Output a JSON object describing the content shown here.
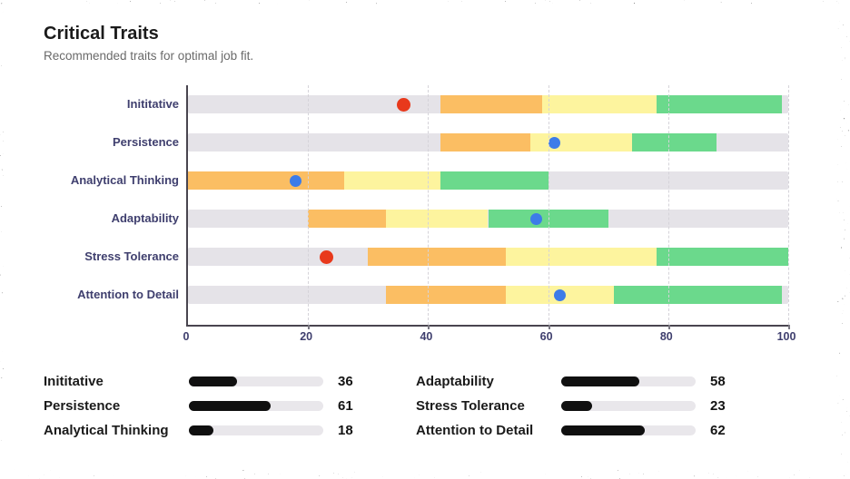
{
  "card": {
    "title": "Critical Traits",
    "subtitle": "Recommended traits for optimal job fit."
  },
  "chart_data": {
    "type": "bar",
    "title": "Critical Traits",
    "orientation": "horizontal",
    "xlim": [
      0,
      100
    ],
    "x_ticks": [
      0,
      20,
      40,
      60,
      80,
      100
    ],
    "grid": "vertical-dashed",
    "band_colors": {
      "orange": "#FBBE63",
      "yellow": "#FDF49E",
      "green": "#6BD98C",
      "track": "#E5E3E8"
    },
    "marker_colors": {
      "in_range": "#3D7CE8",
      "out_of_range": "#E8391C"
    },
    "rows": [
      {
        "label": "Inititative",
        "value": 36,
        "marker": "out_of_range",
        "bands": [
          {
            "color": "orange",
            "range": [
              42,
              59
            ]
          },
          {
            "color": "yellow",
            "range": [
              59,
              78
            ]
          },
          {
            "color": "green",
            "range": [
              78,
              99
            ]
          }
        ]
      },
      {
        "label": "Persistence",
        "value": 61,
        "marker": "in_range",
        "bands": [
          {
            "color": "orange",
            "range": [
              42,
              57
            ]
          },
          {
            "color": "yellow",
            "range": [
              57,
              74
            ]
          },
          {
            "color": "green",
            "range": [
              74,
              88
            ]
          }
        ]
      },
      {
        "label": "Analytical Thinking",
        "value": 18,
        "marker": "in_range",
        "bands": [
          {
            "color": "orange",
            "range": [
              0,
              26
            ]
          },
          {
            "color": "yellow",
            "range": [
              26,
              42
            ]
          },
          {
            "color": "green",
            "range": [
              42,
              60
            ]
          }
        ]
      },
      {
        "label": "Adaptability",
        "value": 58,
        "marker": "in_range",
        "bands": [
          {
            "color": "orange",
            "range": [
              20,
              33
            ]
          },
          {
            "color": "yellow",
            "range": [
              33,
              50
            ]
          },
          {
            "color": "green",
            "range": [
              50,
              70
            ]
          }
        ]
      },
      {
        "label": "Stress Tolerance",
        "value": 23,
        "marker": "out_of_range",
        "bands": [
          {
            "color": "orange",
            "range": [
              30,
              53
            ]
          },
          {
            "color": "yellow",
            "range": [
              53,
              78
            ]
          },
          {
            "color": "green",
            "range": [
              78,
              100
            ]
          }
        ]
      },
      {
        "label": "Attention to Detail",
        "value": 62,
        "marker": "in_range",
        "bands": [
          {
            "color": "orange",
            "range": [
              33,
              53
            ]
          },
          {
            "color": "yellow",
            "range": [
              53,
              71
            ]
          },
          {
            "color": "green",
            "range": [
              71,
              99
            ]
          }
        ]
      }
    ]
  },
  "summary": {
    "columns": [
      {
        "items": [
          {
            "label": "Inititative",
            "value": 36
          },
          {
            "label": "Persistence",
            "value": 61
          },
          {
            "label": "Analytical Thinking",
            "value": 18
          }
        ]
      },
      {
        "items": [
          {
            "label": "Adaptability",
            "value": 58
          },
          {
            "label": "Stress Tolerance",
            "value": 23
          },
          {
            "label": "Attention to Detail",
            "value": 62
          }
        ]
      }
    ]
  }
}
